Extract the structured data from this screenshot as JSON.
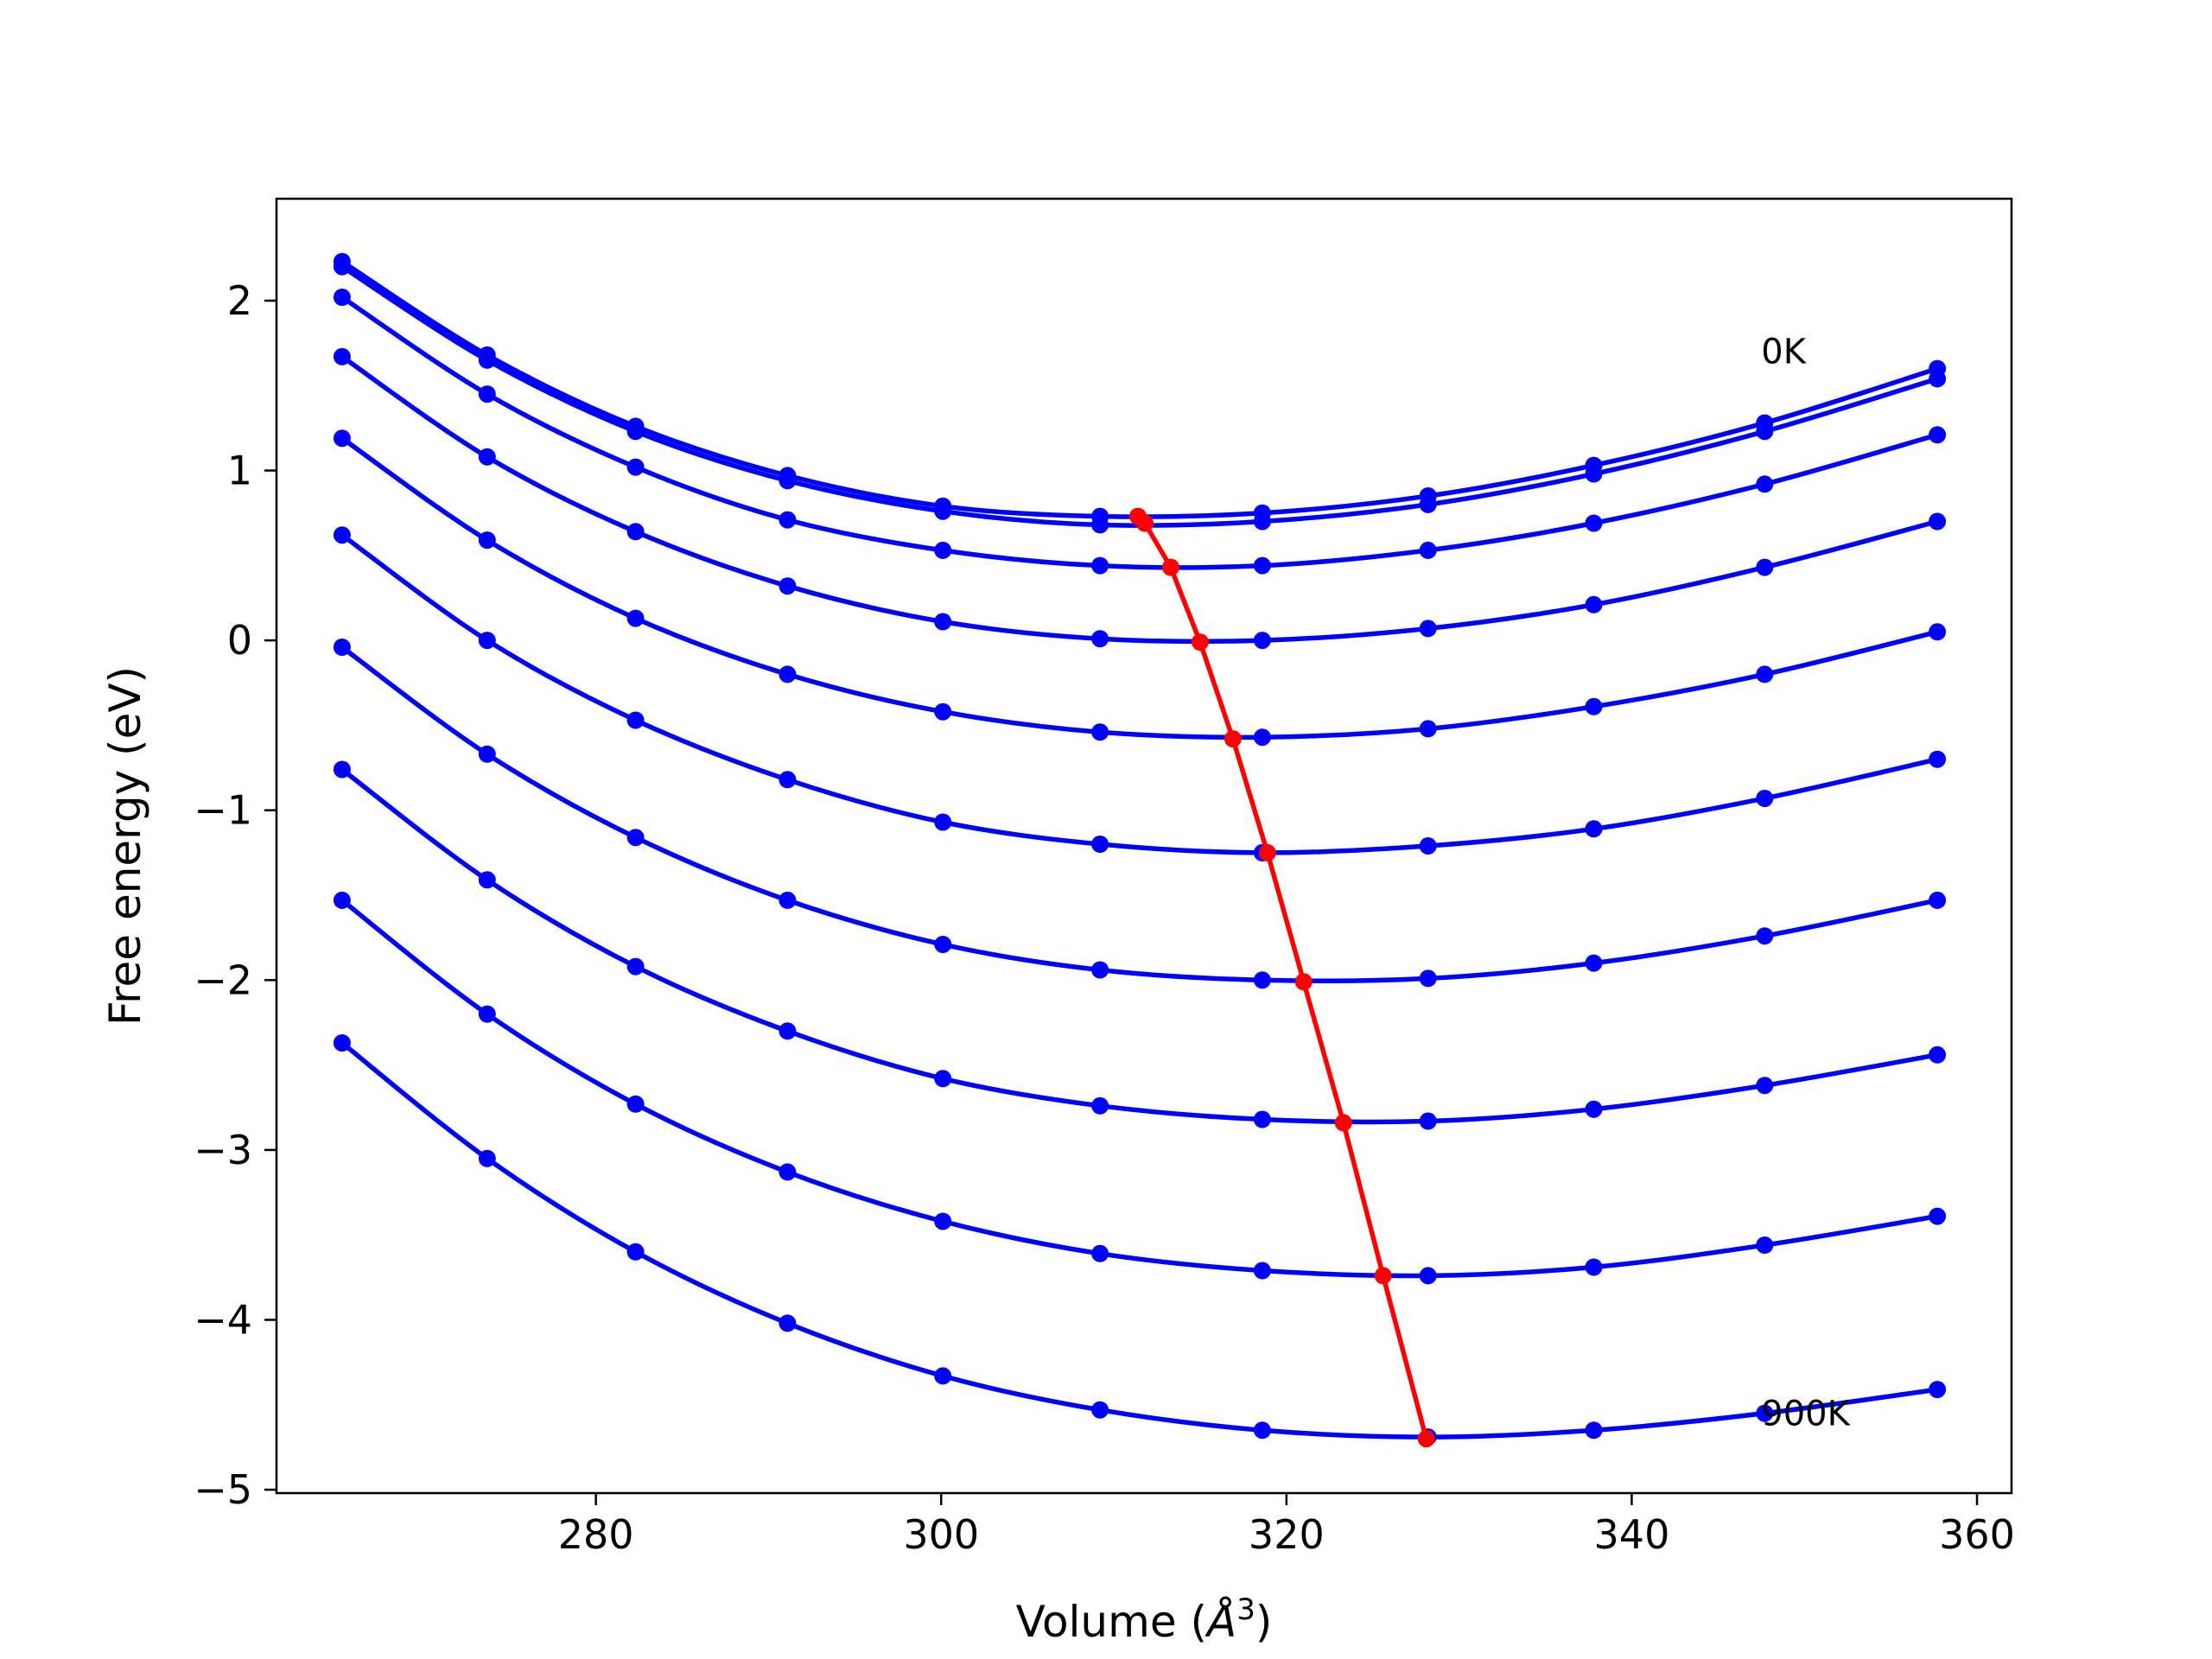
{
  "chart_data": {
    "type": "line",
    "title": "",
    "xlabel": "Volume (Å³)",
    "xlabel_base": "Volume (",
    "xlabel_sym": "Å",
    "xlabel_exp": "3",
    "xlabel_close": ")",
    "ylabel": "Free energy (eV)",
    "xlim": [
      261.5,
      362.0
    ],
    "ylim": [
      -5.02,
      2.6
    ],
    "xticks": [
      280,
      300,
      320,
      340,
      360
    ],
    "xtick_labels": [
      "280",
      "300",
      "320",
      "340",
      "360"
    ],
    "yticks": [
      -5,
      -4,
      -3,
      -2,
      -1,
      0,
      1,
      2
    ],
    "ytick_labels": [
      "−5",
      "−4",
      "−3",
      "−2",
      "−1",
      "0",
      "1",
      "2"
    ],
    "grid": false,
    "curve_color": "#0000ff",
    "min_color": "#ff0000",
    "annotations": [
      {
        "text": "0K",
        "x": 347.5,
        "y": 1.63
      },
      {
        "text": "900K",
        "x": 347.5,
        "y": -4.62
      }
    ],
    "volumes": [
      265.3,
      273.7,
      282.3,
      291.1,
      300.1,
      309.2,
      318.6,
      328.2,
      337.8,
      347.7,
      357.7
    ],
    "series": [
      {
        "values": [
          2.23,
          1.68,
          1.26,
          0.97,
          0.79,
          0.73,
          0.75,
          0.85,
          1.03,
          1.28,
          1.6
        ],
        "min": [
          311.4,
          0.73
        ]
      },
      {
        "values": [
          2.2,
          1.65,
          1.23,
          0.94,
          0.76,
          0.68,
          0.7,
          0.8,
          0.98,
          1.23,
          1.54
        ],
        "min": [
          311.8,
          0.69
        ]
      },
      {
        "values": [
          2.02,
          1.45,
          1.02,
          0.71,
          0.53,
          0.44,
          0.44,
          0.53,
          0.69,
          0.92,
          1.21
        ],
        "min": [
          313.3,
          0.43
        ]
      },
      {
        "values": [
          1.67,
          1.08,
          0.64,
          0.32,
          0.11,
          0.01,
          0.0,
          0.07,
          0.21,
          0.43,
          0.7
        ],
        "min": [
          315.0,
          -0.01
        ]
      },
      {
        "values": [
          1.19,
          0.59,
          0.13,
          -0.2,
          -0.42,
          -0.54,
          -0.57,
          -0.52,
          -0.39,
          -0.2,
          0.05
        ],
        "min": [
          316.9,
          -0.58
        ]
      },
      {
        "values": [
          0.62,
          0.0,
          -0.47,
          -0.82,
          -1.07,
          -1.2,
          -1.25,
          -1.21,
          -1.11,
          -0.93,
          -0.7
        ],
        "min": [
          318.9,
          -1.25
        ]
      },
      {
        "values": [
          -0.04,
          -0.67,
          -1.16,
          -1.53,
          -1.79,
          -1.94,
          -2.0,
          -1.99,
          -1.9,
          -1.74,
          -1.53
        ],
        "min": [
          321.0,
          -2.01
        ]
      },
      {
        "values": [
          -0.76,
          -1.41,
          -1.92,
          -2.3,
          -2.58,
          -2.74,
          -2.82,
          -2.83,
          -2.76,
          -2.62,
          -2.44
        ],
        "min": [
          323.3,
          -2.84
        ]
      },
      {
        "values": [
          -1.53,
          -2.2,
          -2.73,
          -3.13,
          -3.42,
          -3.61,
          -3.71,
          -3.74,
          -3.69,
          -3.56,
          -3.39
        ],
        "min": [
          325.6,
          -3.74
        ]
      },
      {
        "values": [
          -2.37,
          -3.05,
          -3.6,
          -4.02,
          -4.33,
          -4.53,
          -4.65,
          -4.69,
          -4.65,
          -4.55,
          -4.41
        ],
        "min": [
          328.1,
          -4.7
        ]
      }
    ]
  }
}
